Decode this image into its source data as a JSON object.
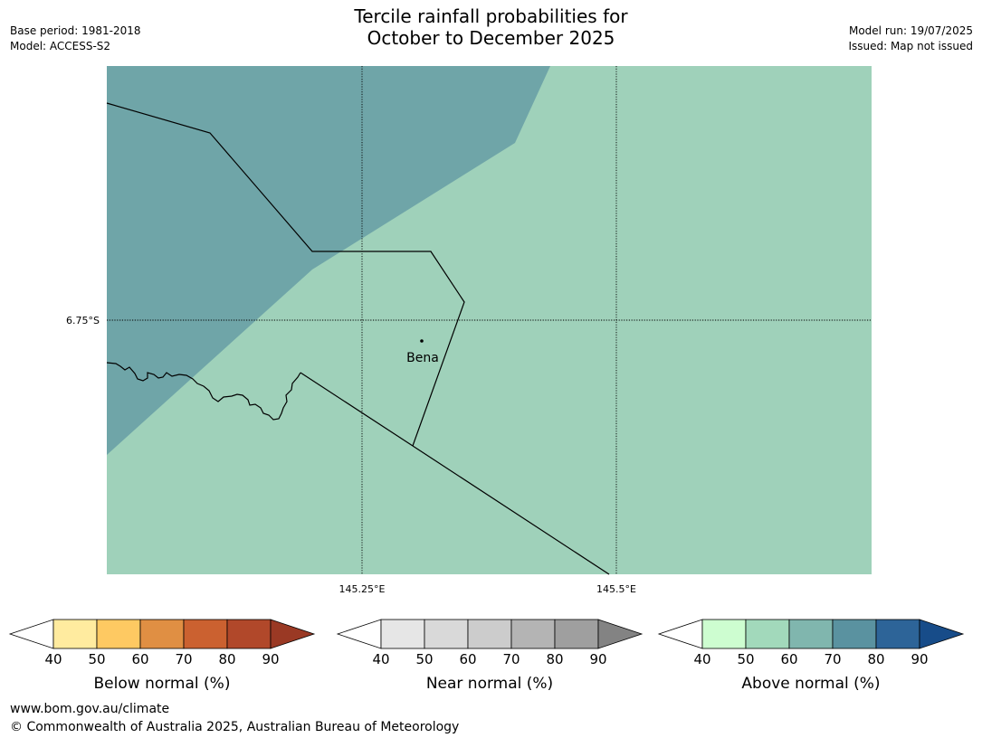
{
  "title": {
    "line1": "Tercile rainfall probabilities for",
    "line2": "October to December 2025"
  },
  "meta_left": {
    "base_period": "Base period: 1981-2018",
    "model": "Model: ACCESS-S2"
  },
  "meta_right": {
    "model_run": "Model run: 19/07/2025",
    "issued": "Issued: Map not issued"
  },
  "map": {
    "place_label": "Bena",
    "lat_label": "6.75°S",
    "lon_labels": [
      "145.25°E",
      "145.5°E"
    ],
    "colors": {
      "background": "#9fd1ba",
      "region_70_80": "#6fa5a8",
      "border": "#000000",
      "grid": "#000000"
    }
  },
  "legends": [
    {
      "label": "Below normal (%)",
      "ticks": [
        "40",
        "50",
        "60",
        "70",
        "80",
        "90"
      ],
      "colors": [
        "#ffeb9f",
        "#fec962",
        "#e08f43",
        "#cb6130",
        "#b1482a",
        "#9a3924"
      ]
    },
    {
      "label": "Near normal (%)",
      "ticks": [
        "40",
        "50",
        "60",
        "70",
        "80",
        "90"
      ],
      "colors": [
        "#e6e6e6",
        "#d9d9d9",
        "#cccccc",
        "#b4b4b4",
        "#9f9f9f",
        "#838383"
      ]
    },
    {
      "label": "Above normal (%)",
      "ticks": [
        "40",
        "50",
        "60",
        "70",
        "80",
        "90"
      ],
      "colors": [
        "#cdfdd0",
        "#a2d9bb",
        "#80b6ae",
        "#5a92a0",
        "#2d6498",
        "#174c89"
      ]
    }
  ],
  "footer": {
    "url": "www.bom.gov.au/climate",
    "copyright": "© Commonwealth of Australia 2025, Australian Bureau of Meteorology"
  }
}
